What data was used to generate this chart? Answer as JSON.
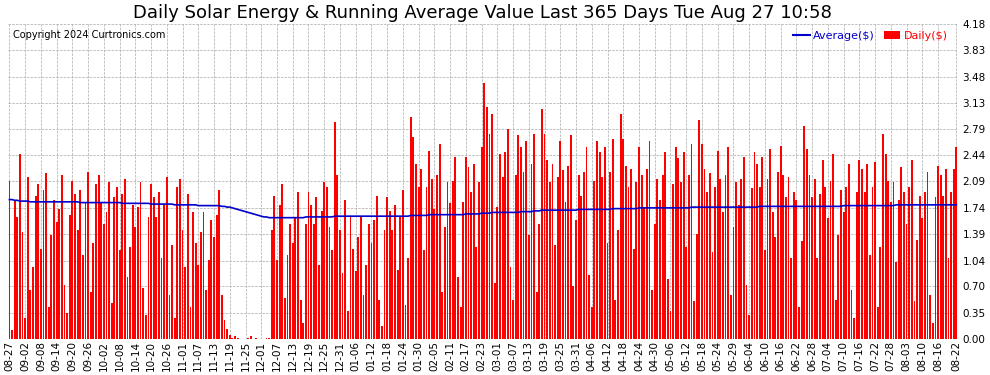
{
  "title": "Daily Solar Energy & Running Average Value Last 365 Days Tue Aug 27 10:58",
  "copyright": "Copyright 2024 Curtronics.com",
  "legend_avg": "Average($)",
  "legend_daily": "Daily($)",
  "bar_color": "#ff0000",
  "avg_line_color": "#0000cc",
  "background_color": "#ffffff",
  "grid_color": "#aaaaaa",
  "ylim": [
    0.0,
    4.18
  ],
  "yticks": [
    0.0,
    0.35,
    0.7,
    1.04,
    1.39,
    1.74,
    2.09,
    2.44,
    2.79,
    3.13,
    3.48,
    3.83,
    4.18
  ],
  "title_fontsize": 13,
  "axis_fontsize": 7.5,
  "daily_values": [
    2.1,
    0.12,
    1.85,
    1.62,
    2.45,
    1.42,
    0.28,
    2.15,
    0.65,
    0.95,
    1.9,
    2.05,
    1.2,
    1.98,
    2.2,
    0.42,
    1.38,
    1.85,
    1.55,
    1.72,
    2.18,
    0.72,
    0.35,
    1.65,
    2.1,
    1.92,
    1.45,
    1.98,
    1.12,
    1.82,
    2.22,
    0.62,
    1.28,
    2.05,
    2.18,
    1.82,
    1.52,
    1.68,
    2.08,
    0.48,
    1.88,
    2.02,
    1.18,
    1.92,
    2.12,
    0.82,
    1.22,
    1.78,
    1.48,
    1.75,
    2.08,
    0.68,
    0.32,
    1.62,
    2.05,
    1.88,
    1.62,
    1.95,
    1.08,
    1.78,
    2.15,
    0.58,
    1.25,
    0.28,
    2.02,
    2.12,
    1.45,
    0.95,
    1.92,
    0.42,
    1.68,
    1.28,
    0.98,
    1.42,
    1.68,
    0.65,
    1.05,
    1.58,
    1.35,
    1.65,
    1.98,
    0.58,
    0.25,
    0.14,
    0.06,
    0.01,
    0.04,
    0.01,
    0.0,
    0.0,
    0.0,
    0.01,
    0.04,
    0.0,
    0.01,
    0.0,
    0.0,
    0.0,
    0.01,
    0.01,
    1.45,
    1.9,
    1.05,
    1.78,
    2.05,
    0.55,
    1.12,
    1.52,
    1.28,
    1.62,
    1.95,
    0.52,
    0.22,
    1.52,
    1.95,
    1.78,
    1.52,
    1.88,
    0.98,
    1.7,
    2.08,
    2.02,
    1.48,
    1.18,
    2.88,
    2.18,
    1.45,
    0.88,
    1.85,
    0.38,
    1.62,
    1.2,
    0.9,
    1.35,
    1.62,
    0.58,
    0.98,
    1.52,
    1.28,
    1.58,
    1.9,
    0.52,
    0.18,
    1.45,
    1.88,
    1.7,
    1.45,
    1.78,
    0.92,
    1.62,
    1.98,
    0.45,
    1.08,
    2.95,
    2.68,
    2.32,
    2.02,
    2.25,
    1.18,
    2.02,
    2.5,
    2.12,
    1.72,
    2.18,
    2.58,
    0.62,
    1.48,
    2.08,
    1.8,
    2.1,
    2.42,
    0.82,
    0.42,
    1.82,
    2.42,
    2.28,
    1.95,
    2.32,
    1.22,
    2.08,
    2.55,
    3.4,
    3.08,
    2.72,
    2.98,
    0.75,
    1.75,
    2.45,
    2.15,
    2.48,
    2.78,
    0.95,
    0.52,
    2.18,
    2.7,
    2.55,
    2.22,
    2.62,
    1.38,
    2.32,
    2.72,
    0.62,
    1.52,
    3.05,
    2.72,
    2.38,
    2.08,
    2.32,
    1.25,
    2.15,
    2.62,
    2.24,
    1.82,
    2.3,
    2.7,
    0.7,
    1.58,
    2.18,
    1.9,
    2.22,
    2.55,
    0.85,
    0.42,
    2.1,
    2.62,
    2.48,
    2.15,
    2.55,
    1.28,
    2.22,
    2.65,
    0.52,
    1.45,
    2.98,
    2.65,
    2.3,
    2.02,
    2.25,
    1.2,
    2.08,
    2.55,
    2.18,
    1.75,
    2.25,
    2.62,
    0.65,
    1.52,
    2.12,
    1.85,
    2.18,
    2.48,
    0.8,
    0.38,
    2.05,
    2.55,
    2.4,
    2.08,
    2.48,
    1.22,
    2.18,
    2.58,
    0.5,
    1.4,
    2.9,
    2.58,
    2.25,
    1.95,
    2.2,
    1.15,
    2.02,
    2.5,
    2.12,
    1.68,
    2.18,
    2.55,
    0.58,
    1.48,
    2.08,
    1.78,
    2.12,
    2.42,
    0.72,
    0.32,
    2.0,
    2.48,
    2.32,
    2.02,
    2.42,
    1.18,
    2.12,
    2.52,
    1.68,
    1.35,
    2.22,
    2.56,
    2.18,
    1.88,
    2.15,
    1.08,
    1.95,
    1.85,
    0.42,
    1.3,
    2.82,
    2.52,
    2.18,
    1.88,
    2.12,
    1.08,
    1.92,
    2.38,
    2.02,
    1.6,
    2.1,
    2.45,
    0.52,
    1.38,
    1.98,
    1.68,
    2.02,
    2.32,
    0.65,
    0.28,
    1.95,
    2.38,
    2.25,
    1.95,
    2.32,
    1.12,
    2.02,
    2.35,
    0.42,
    1.22,
    2.72,
    2.45,
    2.1,
    1.82,
    2.08,
    1.02,
    1.85,
    2.28,
    1.95,
    1.52,
    2.02,
    2.38,
    0.5,
    1.32,
    1.9,
    1.6,
    1.95,
    2.22,
    0.58,
    0.22,
    1.88,
    2.3,
    2.18,
    1.9,
    2.25,
    1.08,
    1.95,
    2.25,
    2.55
  ],
  "x_tick_labels": [
    "08-27",
    "09-02",
    "09-08",
    "09-14",
    "09-20",
    "09-26",
    "10-02",
    "10-08",
    "10-14",
    "10-20",
    "10-26",
    "11-01",
    "11-07",
    "11-13",
    "11-19",
    "11-25",
    "12-01",
    "12-07",
    "12-13",
    "12-19",
    "12-25",
    "12-31",
    "01-06",
    "01-12",
    "01-18",
    "01-24",
    "01-30",
    "02-05",
    "02-11",
    "02-17",
    "02-23",
    "03-01",
    "03-07",
    "03-13",
    "03-19",
    "03-25",
    "03-31",
    "04-06",
    "04-12",
    "04-18",
    "04-24",
    "04-30",
    "05-06",
    "05-12",
    "05-18",
    "05-24",
    "05-29",
    "06-04",
    "06-10",
    "06-16",
    "06-22",
    "06-28",
    "07-04",
    "07-10",
    "07-16",
    "07-22",
    "07-28",
    "08-03",
    "08-10",
    "08-16",
    "08-22"
  ],
  "avg_values": [
    1.85,
    1.85,
    1.84,
    1.84,
    1.83,
    1.83,
    1.83,
    1.83,
    1.82,
    1.82,
    1.82,
    1.82,
    1.82,
    1.82,
    1.82,
    1.82,
    1.82,
    1.82,
    1.82,
    1.82,
    1.82,
    1.82,
    1.82,
    1.82,
    1.82,
    1.82,
    1.82,
    1.81,
    1.81,
    1.81,
    1.81,
    1.81,
    1.81,
    1.81,
    1.81,
    1.81,
    1.81,
    1.81,
    1.81,
    1.81,
    1.81,
    1.81,
    1.81,
    1.8,
    1.8,
    1.8,
    1.8,
    1.8,
    1.8,
    1.8,
    1.8,
    1.8,
    1.8,
    1.8,
    1.79,
    1.79,
    1.79,
    1.79,
    1.79,
    1.79,
    1.79,
    1.79,
    1.79,
    1.78,
    1.78,
    1.78,
    1.78,
    1.78,
    1.78,
    1.78,
    1.78,
    1.78,
    1.77,
    1.77,
    1.77,
    1.77,
    1.77,
    1.77,
    1.77,
    1.77,
    1.77,
    1.76,
    1.76,
    1.75,
    1.75,
    1.74,
    1.73,
    1.72,
    1.71,
    1.7,
    1.69,
    1.68,
    1.67,
    1.66,
    1.65,
    1.64,
    1.63,
    1.62,
    1.62,
    1.61,
    1.61,
    1.61,
    1.61,
    1.61,
    1.61,
    1.61,
    1.61,
    1.61,
    1.61,
    1.61,
    1.61,
    1.61,
    1.61,
    1.62,
    1.62,
    1.62,
    1.62,
    1.62,
    1.62,
    1.62,
    1.62,
    1.62,
    1.62,
    1.62,
    1.63,
    1.63,
    1.63,
    1.63,
    1.63,
    1.63,
    1.63,
    1.63,
    1.63,
    1.63,
    1.63,
    1.63,
    1.63,
    1.63,
    1.63,
    1.63,
    1.63,
    1.63,
    1.63,
    1.63,
    1.63,
    1.63,
    1.63,
    1.63,
    1.63,
    1.63,
    1.63,
    1.63,
    1.63,
    1.64,
    1.64,
    1.64,
    1.64,
    1.64,
    1.64,
    1.64,
    1.65,
    1.65,
    1.65,
    1.65,
    1.65,
    1.65,
    1.65,
    1.65,
    1.65,
    1.65,
    1.65,
    1.65,
    1.65,
    1.65,
    1.66,
    1.66,
    1.66,
    1.66,
    1.66,
    1.66,
    1.67,
    1.67,
    1.67,
    1.67,
    1.68,
    1.68,
    1.68,
    1.68,
    1.68,
    1.68,
    1.68,
    1.68,
    1.68,
    1.68,
    1.68,
    1.69,
    1.69,
    1.69,
    1.69,
    1.69,
    1.7,
    1.7,
    1.7,
    1.71,
    1.71,
    1.71,
    1.71,
    1.71,
    1.71,
    1.71,
    1.71,
    1.71,
    1.71,
    1.71,
    1.71,
    1.71,
    1.71,
    1.72,
    1.72,
    1.72,
    1.72,
    1.72,
    1.72,
    1.72,
    1.72,
    1.72,
    1.72,
    1.72,
    1.72,
    1.72,
    1.73,
    1.73,
    1.73,
    1.73,
    1.73,
    1.73,
    1.73,
    1.73,
    1.73,
    1.73,
    1.74,
    1.74,
    1.74,
    1.74,
    1.74,
    1.74,
    1.74,
    1.74,
    1.74,
    1.74,
    1.74,
    1.74,
    1.74,
    1.74,
    1.74,
    1.74,
    1.74,
    1.74,
    1.74,
    1.74,
    1.75,
    1.75,
    1.75,
    1.75,
    1.75,
    1.75,
    1.75,
    1.75,
    1.75,
    1.75,
    1.75,
    1.75,
    1.75,
    1.75,
    1.75,
    1.75,
    1.75,
    1.75,
    1.75,
    1.75,
    1.75,
    1.75,
    1.75,
    1.75,
    1.75,
    1.75,
    1.76,
    1.76,
    1.76,
    1.76,
    1.76,
    1.76,
    1.76,
    1.76,
    1.76,
    1.76,
    1.76,
    1.76,
    1.76,
    1.76,
    1.76,
    1.76,
    1.76,
    1.76,
    1.76,
    1.76,
    1.76,
    1.76,
    1.76,
    1.76,
    1.76,
    1.76,
    1.76,
    1.76,
    1.76,
    1.76,
    1.76,
    1.76,
    1.77,
    1.77,
    1.77,
    1.77,
    1.77,
    1.77,
    1.77,
    1.77,
    1.77,
    1.77,
    1.77,
    1.77,
    1.77,
    1.77,
    1.77,
    1.77,
    1.77,
    1.77,
    1.77,
    1.77,
    1.78,
    1.78,
    1.78,
    1.78,
    1.78,
    1.78,
    1.78,
    1.78,
    1.78,
    1.78,
    1.78,
    1.78,
    1.78,
    1.78,
    1.78,
    1.78,
    1.78,
    1.78,
    1.78,
    1.78,
    1.78,
    1.78,
    1.78,
    1.78
  ]
}
